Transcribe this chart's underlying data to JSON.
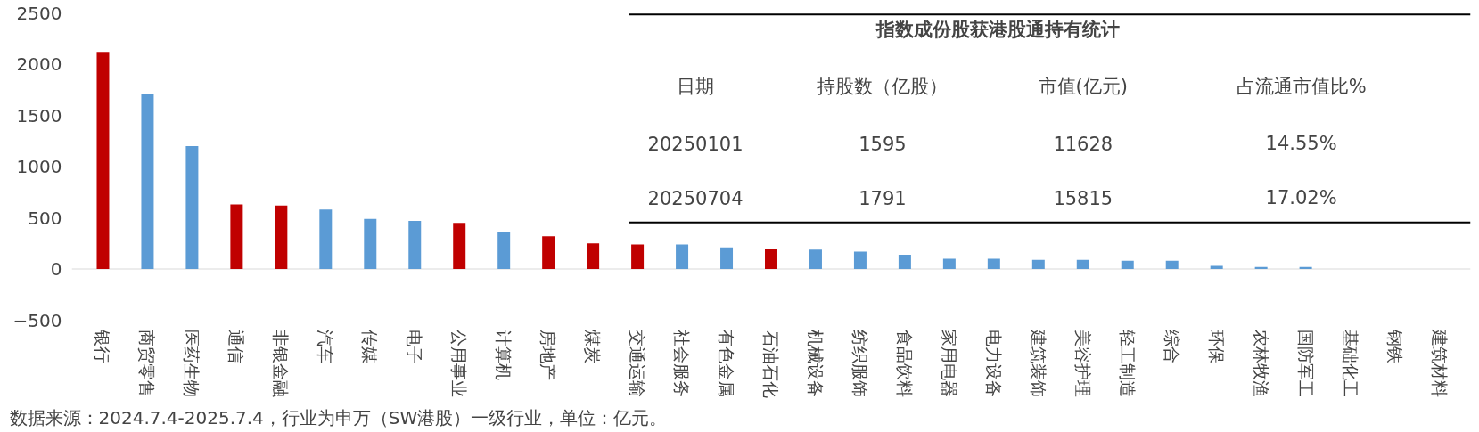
{
  "chart_data": [
    {
      "type": "bar",
      "categories": [
        "银行",
        "商贸零售",
        "医药生物",
        "通信",
        "非银金融",
        "汽车",
        "传媒",
        "电子",
        "公用事业",
        "计算机",
        "房地产",
        "煤炭",
        "交通运输",
        "社会服务",
        "有色金属",
        "石油石化",
        "机械设备",
        "纺织服饰",
        "食品饮料",
        "家用电器",
        "电力设备",
        "建筑装饰",
        "美容护理",
        "轻工制造",
        "综合",
        "环保",
        "农林牧渔",
        "国防军工",
        "基础化工",
        "钢铁",
        "建筑材料"
      ],
      "values": [
        2120,
        1710,
        1200,
        630,
        620,
        580,
        490,
        470,
        450,
        360,
        320,
        250,
        240,
        240,
        210,
        200,
        190,
        170,
        140,
        100,
        100,
        90,
        90,
        80,
        80,
        30,
        20,
        20,
        0,
        0,
        0
      ],
      "colors": [
        "#c00000",
        "#5b9bd5",
        "#5b9bd5",
        "#c00000",
        "#c00000",
        "#5b9bd5",
        "#5b9bd5",
        "#5b9bd5",
        "#c00000",
        "#5b9bd5",
        "#c00000",
        "#c00000",
        "#c00000",
        "#5b9bd5",
        "#5b9bd5",
        "#c00000",
        "#5b9bd5",
        "#5b9bd5",
        "#5b9bd5",
        "#5b9bd5",
        "#5b9bd5",
        "#5b9bd5",
        "#5b9bd5",
        "#5b9bd5",
        "#5b9bd5",
        "#5b9bd5",
        "#5b9bd5",
        "#5b9bd5",
        "#5b9bd5",
        "#5b9bd5",
        "#5b9bd5"
      ],
      "ylim": [
        -500,
        2500
      ],
      "yticks": [
        -500,
        0,
        500,
        1000,
        1500,
        2000,
        2500
      ],
      "grid": false,
      "ref_lines": [
        {
          "axis": "y",
          "value": 0,
          "color": "#d9d9d9"
        }
      ],
      "annotations": [
        "数据来源：2024.7.4-2025.7.4，行业为申万（SW港股）一级行业，单位：亿元。"
      ]
    },
    {
      "type": "other",
      "title": "指数成份股获港股通持有统计",
      "annotations": [
        "日期",
        "持股数（亿股）",
        "市值(亿元)",
        "占流通市值比%",
        "20250101",
        "1595",
        "11628",
        "14.55%",
        "20250704",
        "1791",
        "15815",
        "17.02%"
      ]
    }
  ]
}
